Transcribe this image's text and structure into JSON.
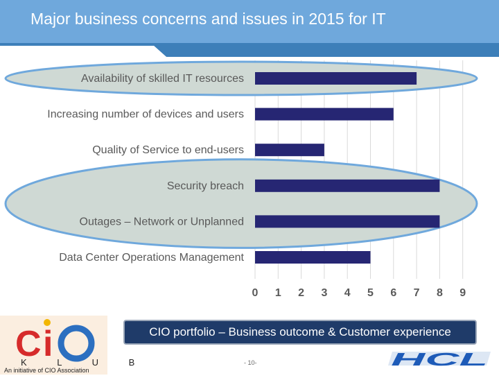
{
  "slide": {
    "title": "Major business concerns and issues in 2015 for IT",
    "banner": "CIO portfolio – Business outcome & Customer experience",
    "page_number": "- 10-"
  },
  "logo": {
    "cio_text": "CiO",
    "klub_text": "K L U B",
    "tagline": "An initiative of CIO Association",
    "hcl_text": "HCL"
  },
  "colors": {
    "header": "#6fa8dc",
    "bar": "#262673",
    "highlight_fill": "#cfd9d4",
    "highlight_stroke": "#6fa8dc",
    "banner": "#1f3b69"
  },
  "chart_data": {
    "type": "bar",
    "orientation": "horizontal",
    "categories": [
      "Availability of skilled IT resources",
      "Increasing number of devices and users",
      "Quality of Service to end-users",
      "Security breach",
      "Outages – Network or Unplanned",
      "Data Center Operations Management"
    ],
    "values": [
      7,
      6,
      3,
      8,
      8,
      5
    ],
    "xlim": [
      0,
      9
    ],
    "xticks": [
      "0",
      "1",
      "2",
      "3",
      "4",
      "5",
      "6",
      "7",
      "8",
      "9"
    ],
    "grid": true,
    "highlighted_groups": [
      [
        0
      ],
      [
        3,
        4
      ]
    ]
  }
}
